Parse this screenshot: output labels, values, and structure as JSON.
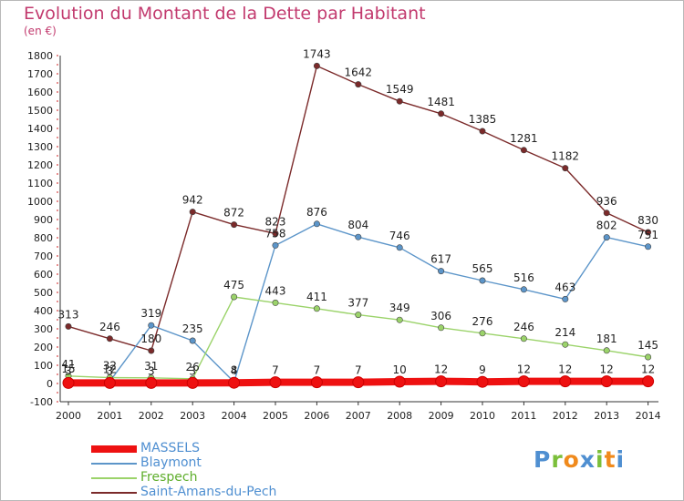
{
  "title": "Evolution du Montant de la Dette par Habitant",
  "unit_label": "(en €)",
  "logo": {
    "text": "Proxiti",
    "colors": [
      "#4f8fd1",
      "#7bbf3a",
      "#f08a1c",
      "#4f8fd1",
      "#7bbf3a",
      "#f08a1c",
      "#4f8fd1"
    ]
  },
  "chart_data": {
    "type": "line",
    "title": "Evolution du Montant de la Dette par Habitant",
    "ylabel": "(en €)",
    "xlabel": "",
    "ylim": [
      -100,
      1800
    ],
    "yticks": [
      -100,
      0,
      100,
      200,
      300,
      400,
      500,
      600,
      700,
      800,
      900,
      1000,
      1100,
      1200,
      1300,
      1400,
      1500,
      1600,
      1700,
      1800
    ],
    "x": [
      "2000",
      "2001",
      "2002",
      "2003",
      "2004",
      "2005",
      "2006",
      "2007",
      "2008",
      "2009",
      "2010",
      "2011",
      "2012",
      "2013",
      "2014"
    ],
    "grid": false,
    "legend_position": "bottom-left",
    "series": [
      {
        "name": "Saint-Amans-du-Pech",
        "color": "#7b2a2a",
        "values": [
          313,
          246,
          180,
          942,
          872,
          823,
          1743,
          1642,
          1549,
          1481,
          1385,
          1281,
          1182,
          936,
          830
        ],
        "labels": [
          "313",
          "246",
          "180",
          "942",
          "872",
          "823",
          "1743",
          "1642",
          "1549",
          "1481",
          "1385",
          "1281",
          "1182",
          "936",
          "830"
        ]
      },
      {
        "name": "Blaymont",
        "color": "#5c95c9",
        "values": [
          15,
          12,
          319,
          235,
          8,
          758,
          876,
          804,
          746,
          617,
          565,
          516,
          463,
          802,
          751
        ],
        "labels": [
          "15",
          "12",
          "319",
          "235",
          "8",
          "758",
          "876",
          "804",
          "746",
          "617",
          "565",
          "516",
          "463",
          "802",
          "751"
        ]
      },
      {
        "name": "Frespech",
        "color": "#9bd36a",
        "values": [
          41,
          32,
          31,
          26,
          475,
          443,
          411,
          377,
          349,
          306,
          276,
          246,
          214,
          181,
          145
        ],
        "labels": [
          "41",
          "32",
          "31",
          "26",
          "475",
          "443",
          "411",
          "377",
          "349",
          "306",
          "276",
          "246",
          "214",
          "181",
          "145"
        ]
      },
      {
        "name": "MASSELS",
        "color": "#ee1111",
        "values": [
          3,
          3,
          3,
          3,
          4,
          7,
          7,
          7,
          10,
          12,
          9,
          12,
          12,
          12,
          12
        ],
        "labels": [
          "3",
          "3",
          "3",
          "3",
          "4",
          "7",
          "7",
          "7",
          "10",
          "12",
          "9",
          "12",
          "12",
          "12",
          "12"
        ]
      }
    ],
    "legend": [
      {
        "name": "MASSELS",
        "color": "#ee1111",
        "thick": true
      },
      {
        "name": "Blaymont",
        "color": "#5c95c9",
        "thick": false
      },
      {
        "name": "Frespech",
        "color": "#9bd36a",
        "thick": false
      },
      {
        "name": "Saint-Amans-du-Pech",
        "color": "#7b2a2a",
        "thick": false
      }
    ]
  }
}
